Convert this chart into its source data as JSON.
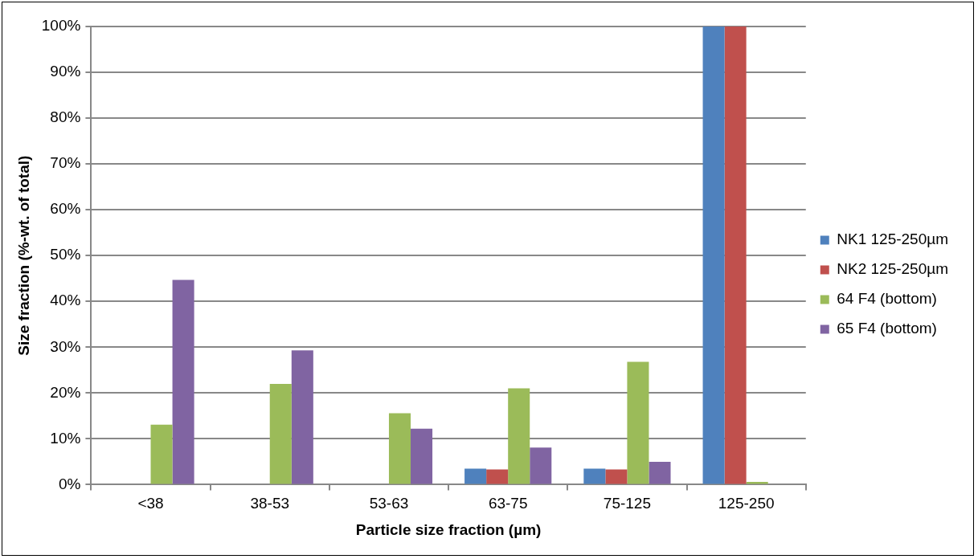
{
  "chart_data": {
    "type": "bar",
    "xlabel": "Particle size fraction (µm)",
    "ylabel": "Size fraction (%-wt. of total)",
    "categories": [
      "<38",
      "38-53",
      "53-63",
      "63-75",
      "75-125",
      "125-250"
    ],
    "series": [
      {
        "name": "NK1 125-250µm",
        "color": "#4f81bd",
        "values": [
          0,
          0,
          0,
          3.5,
          3.5,
          100
        ]
      },
      {
        "name": "NK2 125-250µm",
        "color": "#c0504d",
        "values": [
          0,
          0,
          0,
          3.3,
          3.3,
          100
        ]
      },
      {
        "name": "64 F4 (bottom)",
        "color": "#9bbb59",
        "values": [
          13.1,
          22.0,
          15.6,
          21.0,
          26.8,
          0.6
        ]
      },
      {
        "name": "65 F4 (bottom)",
        "color": "#8064a2",
        "values": [
          44.7,
          29.3,
          12.2,
          8.1,
          5.0,
          0
        ]
      }
    ],
    "ylim": [
      0,
      100
    ],
    "yticks": [
      {
        "value": 0,
        "label": "0%"
      },
      {
        "value": 10,
        "label": "10%"
      },
      {
        "value": 20,
        "label": "20%"
      },
      {
        "value": 30,
        "label": "30%"
      },
      {
        "value": 40,
        "label": "40%"
      },
      {
        "value": 50,
        "label": "50%"
      },
      {
        "value": 60,
        "label": "60%"
      },
      {
        "value": 70,
        "label": "70%"
      },
      {
        "value": 80,
        "label": "80%"
      },
      {
        "value": 90,
        "label": "90%"
      },
      {
        "value": 100,
        "label": "100%"
      }
    ],
    "grid": "y",
    "legend": "right"
  }
}
